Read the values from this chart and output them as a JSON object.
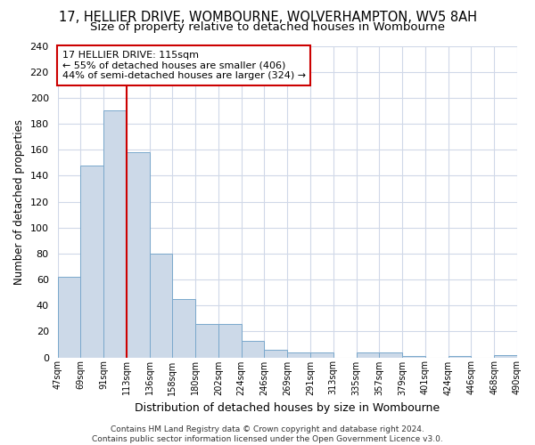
{
  "title": "17, HELLIER DRIVE, WOMBOURNE, WOLVERHAMPTON, WV5 8AH",
  "subtitle": "Size of property relative to detached houses in Wombourne",
  "xlabel": "Distribution of detached houses by size in Wombourne",
  "ylabel": "Number of detached properties",
  "bar_values": [
    62,
    148,
    190,
    158,
    80,
    45,
    26,
    26,
    13,
    6,
    4,
    4,
    0,
    4,
    4,
    1,
    0,
    1,
    0,
    2
  ],
  "bar_labels": [
    "47sqm",
    "69sqm",
    "91sqm",
    "113sqm",
    "136sqm",
    "158sqm",
    "180sqm",
    "202sqm",
    "224sqm",
    "246sqm",
    "269sqm",
    "291sqm",
    "313sqm",
    "335sqm",
    "357sqm",
    "379sqm",
    "401sqm",
    "424sqm",
    "446sqm",
    "468sqm",
    "490sqm"
  ],
  "bar_color": "#ccd9e8",
  "bar_edge_color": "#7aa8cc",
  "vline_color": "#cc0000",
  "annotation_line1": "17 HELLIER DRIVE: 115sqm",
  "annotation_line2": "← 55% of detached houses are smaller (406)",
  "annotation_line3": "44% of semi-detached houses are larger (324) →",
  "annotation_box_color": "#ffffff",
  "annotation_box_edge": "#cc0000",
  "ylim": [
    0,
    240
  ],
  "yticks": [
    0,
    20,
    40,
    60,
    80,
    100,
    120,
    140,
    160,
    180,
    200,
    220,
    240
  ],
  "bg_color": "#ffffff",
  "plot_bg_color": "#ffffff",
  "grid_color": "#d0d8e8",
  "footer_text": "Contains HM Land Registry data © Crown copyright and database right 2024.\nContains public sector information licensed under the Open Government Licence v3.0.",
  "title_fontsize": 10.5,
  "subtitle_fontsize": 9.5,
  "xlabel_fontsize": 9,
  "ylabel_fontsize": 8.5,
  "footer_fontsize": 6.5
}
